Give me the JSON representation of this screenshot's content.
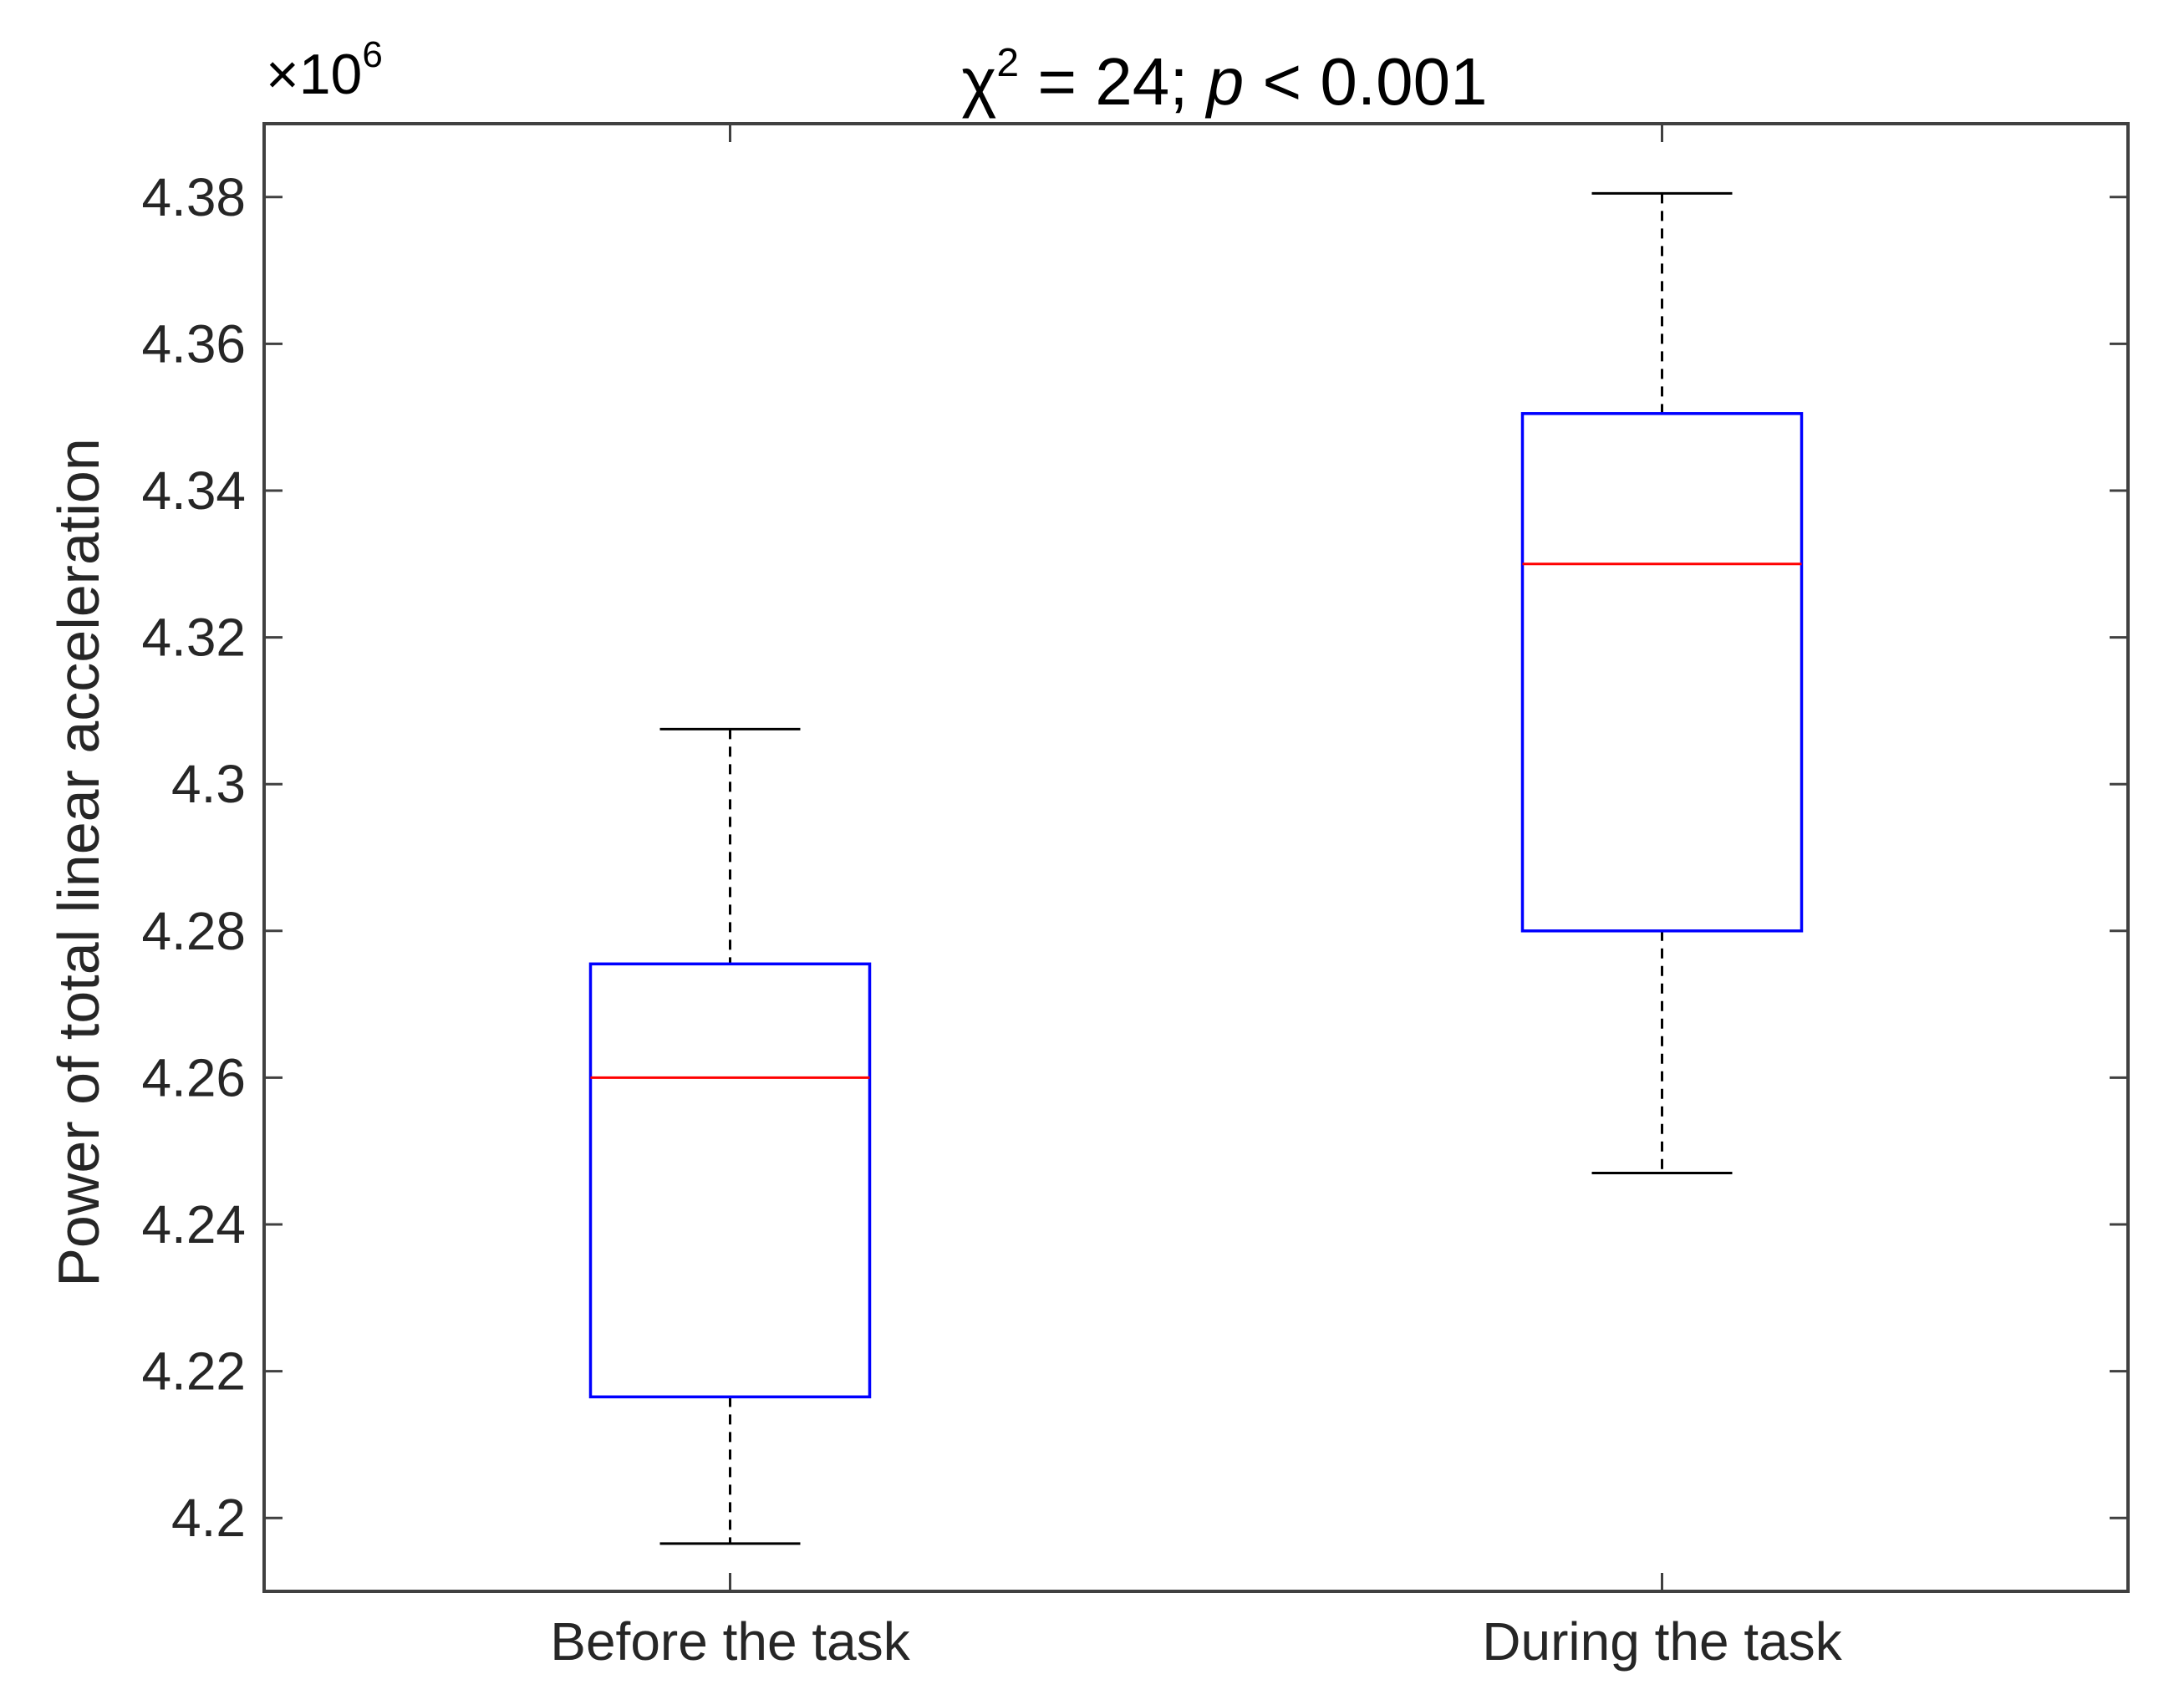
{
  "chart_data": {
    "type": "box",
    "title": {
      "chi_symbol": "χ",
      "chi_exponent": "2",
      "equals_text": " = 24; ",
      "p_symbol": "p",
      "p_text": " < 0.001"
    },
    "ylabel": "Power of total linear acceleration",
    "xlabel": "",
    "y_multiplier": {
      "base": "×10",
      "exponent": "6"
    },
    "ylim": [
      4.19,
      4.39
    ],
    "yticks": [
      4.2,
      4.22,
      4.24,
      4.26,
      4.28,
      4.3,
      4.32,
      4.34,
      4.36,
      4.38
    ],
    "ytick_labels": [
      "4.2",
      "4.22",
      "4.24",
      "4.26",
      "4.28",
      "4.3",
      "4.32",
      "4.34",
      "4.36",
      "4.38"
    ],
    "categories": [
      "Before the task",
      "During the task"
    ],
    "boxes": [
      {
        "whisker_low": 4.1965,
        "q1": 4.2165,
        "median": 4.26,
        "q3": 4.2755,
        "whisker_high": 4.3075
      },
      {
        "whisker_low": 4.247,
        "q1": 4.28,
        "median": 4.33,
        "q3": 4.3505,
        "whisker_high": 4.3805
      }
    ],
    "grid": false,
    "colors": {
      "box": "#0000ff",
      "median": "#ff0000",
      "whisker": "#000000",
      "axes": "#404040"
    }
  }
}
